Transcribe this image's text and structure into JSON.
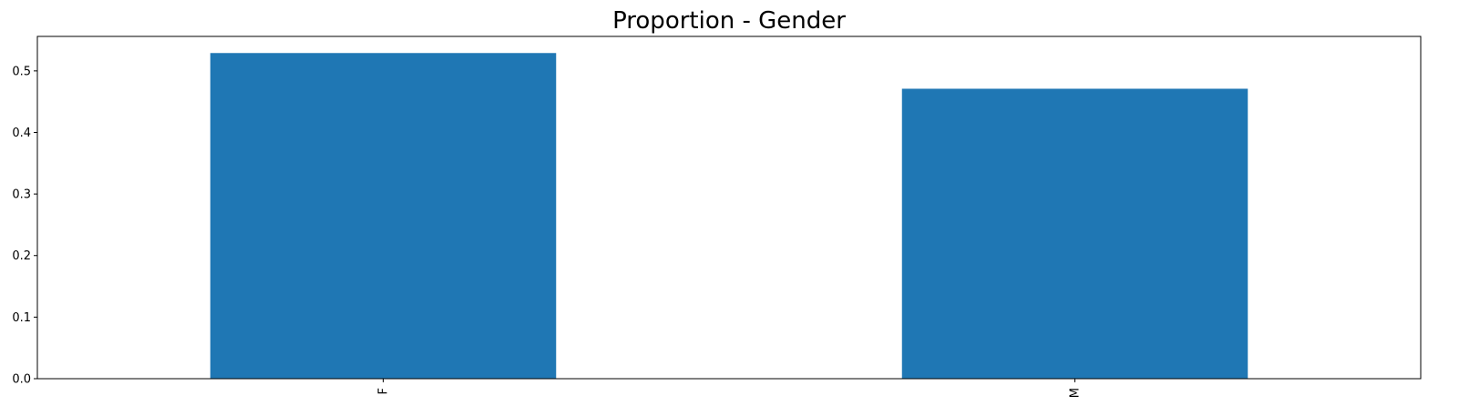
{
  "chart_data": {
    "type": "bar",
    "title": "Proportion - Gender",
    "xlabel": "",
    "ylabel": "",
    "categories": [
      "F",
      "M"
    ],
    "values": [
      0.529,
      0.471
    ],
    "ylim": [
      0,
      0.556
    ],
    "yticks": [
      0.0,
      0.1,
      0.2,
      0.3,
      0.4,
      0.5
    ],
    "ytick_labels": [
      "0.0",
      "0.1",
      "0.2",
      "0.3",
      "0.4",
      "0.5"
    ],
    "xtick_rotation": "vertical",
    "grid": false,
    "legend": "none",
    "bar_color": "#1f77b4"
  }
}
